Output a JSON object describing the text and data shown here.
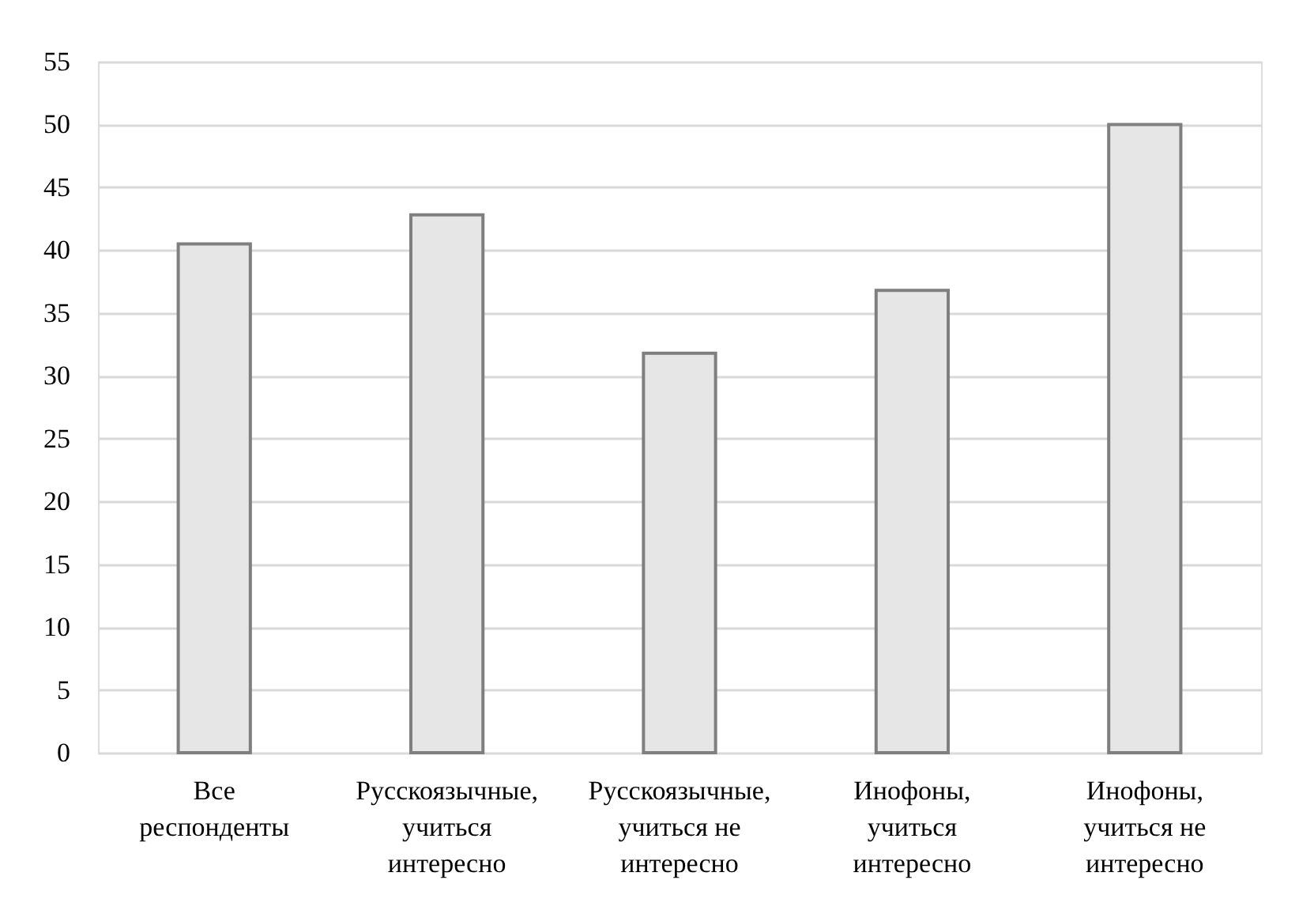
{
  "chart_data": {
    "type": "bar",
    "categories": [
      "Все респонденты",
      "Русскоязычные, учиться интересно",
      "Русскоязычные, учиться не интересно",
      "Инофоны, учиться интересно",
      "Инофоны, учиться не интересно"
    ],
    "values": [
      40.5,
      42.8,
      31.8,
      36.8,
      50
    ],
    "color": "#e6e6e6",
    "ylim": [
      0,
      55
    ],
    "yticks": [
      0,
      5,
      10,
      15,
      20,
      25,
      30,
      35,
      40,
      45,
      50,
      55
    ],
    "grid": "y"
  }
}
